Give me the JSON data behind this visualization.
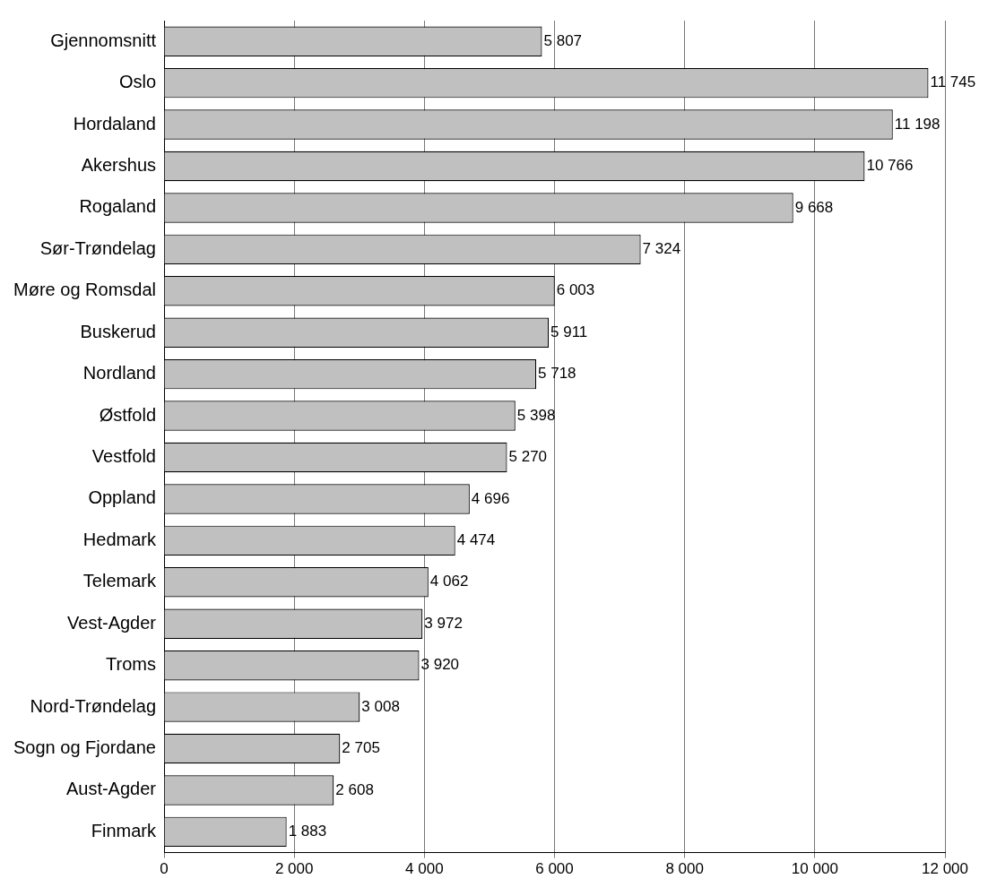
{
  "chart_data": {
    "type": "bar",
    "orientation": "horizontal",
    "categories": [
      "Gjennomsnitt",
      "Oslo",
      "Hordaland",
      "Akershus",
      "Rogaland",
      "Sør-Trøndelag",
      "Møre og Romsdal",
      "Buskerud",
      "Nordland",
      "Østfold",
      "Vestfold",
      "Oppland",
      "Hedmark",
      "Telemark",
      "Vest-Agder",
      "Troms",
      "Nord-Trøndelag",
      "Sogn og Fjordane",
      "Aust-Agder",
      "Finmark"
    ],
    "values": [
      5807,
      11745,
      11198,
      10766,
      9668,
      7324,
      6003,
      5911,
      5718,
      5398,
      5270,
      4696,
      4474,
      4062,
      3972,
      3920,
      3008,
      2705,
      2608,
      1883
    ],
    "value_labels": [
      "5 807",
      "11 745",
      "11 198",
      "10 766",
      "9 668",
      "7 324",
      "6 003",
      "5 911",
      "5 718",
      "5 398",
      "5 270",
      "4 696",
      "4 474",
      "4 062",
      "3 972",
      "3 920",
      "3 008",
      "2 705",
      "2 608",
      "1 883"
    ],
    "color": "#c0c0c0",
    "xlim": [
      0,
      12000
    ],
    "xticks": [
      {
        "value": 0,
        "label": "0"
      },
      {
        "value": 2000,
        "label": "2 000"
      },
      {
        "value": 4000,
        "label": "4 000"
      },
      {
        "value": 6000,
        "label": "6 000"
      },
      {
        "value": 8000,
        "label": "8 000"
      },
      {
        "value": 10000,
        "label": "10 000"
      },
      {
        "value": 12000,
        "label": "12 000"
      }
    ],
    "grid": "x",
    "legend": false
  }
}
